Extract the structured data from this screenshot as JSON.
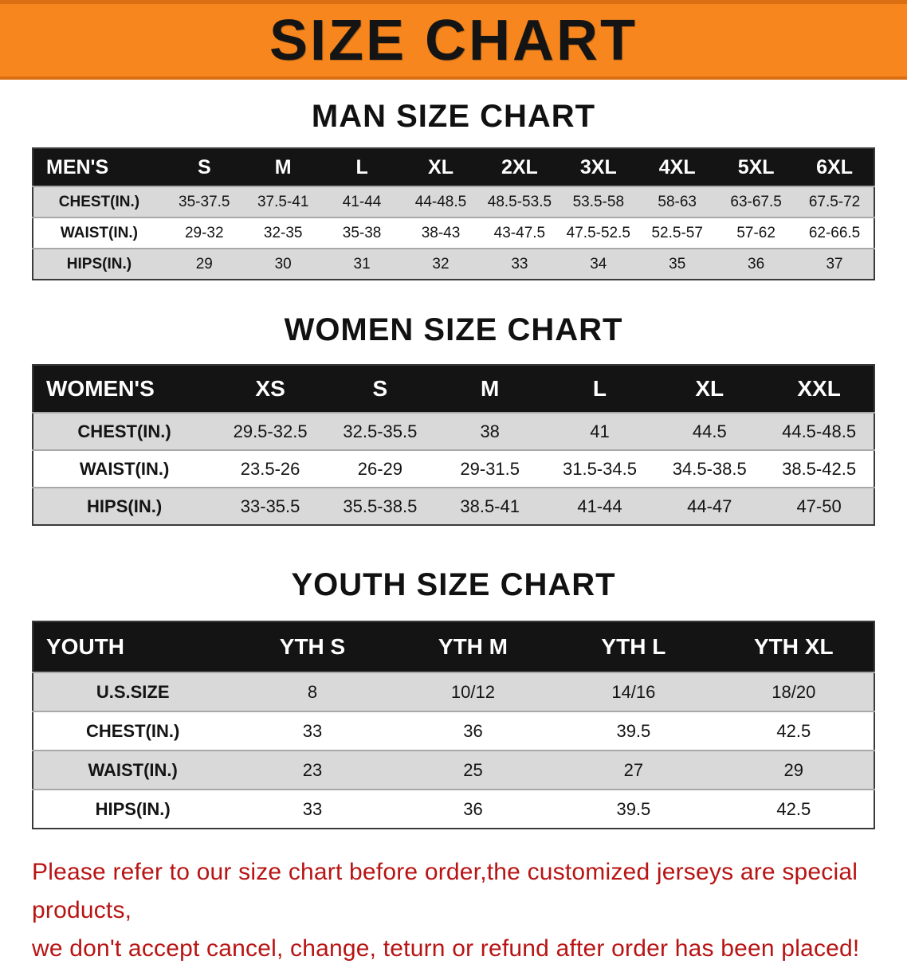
{
  "banner": {
    "title": "SIZE CHART",
    "bg_color": "#F6861D"
  },
  "colors": {
    "table_header_bg": "#141414",
    "stripe_row_bg": "#D9D9D9",
    "footer_text": "#B81414"
  },
  "sections": [
    {
      "heading": "MAN SIZE CHART",
      "table": {
        "header": [
          "MEN'S",
          "S",
          "M",
          "L",
          "XL",
          "2XL",
          "3XL",
          "4XL",
          "5XL",
          "6XL"
        ],
        "rows": [
          [
            "CHEST(IN.)",
            "35-37.5",
            "37.5-41",
            "41-44",
            "44-48.5",
            "48.5-53.5",
            "53.5-58",
            "58-63",
            "63-67.5",
            "67.5-72"
          ],
          [
            "WAIST(IN.)",
            "29-32",
            "32-35",
            "35-38",
            "38-43",
            "43-47.5",
            "47.5-52.5",
            "52.5-57",
            "57-62",
            "62-66.5"
          ],
          [
            "HIPS(IN.)",
            "29",
            "30",
            "31",
            "32",
            "33",
            "34",
            "35",
            "36",
            "37"
          ]
        ]
      }
    },
    {
      "heading": "WOMEN SIZE CHART",
      "table": {
        "header": [
          "WOMEN'S",
          "XS",
          "S",
          "M",
          "L",
          "XL",
          "XXL"
        ],
        "rows": [
          [
            "CHEST(IN.)",
            "29.5-32.5",
            "32.5-35.5",
            "38",
            "41",
            "44.5",
            "44.5-48.5"
          ],
          [
            "WAIST(IN.)",
            "23.5-26",
            "26-29",
            "29-31.5",
            "31.5-34.5",
            "34.5-38.5",
            "38.5-42.5"
          ],
          [
            "HIPS(IN.)",
            "33-35.5",
            "35.5-38.5",
            "38.5-41",
            "41-44",
            "44-47",
            "47-50"
          ]
        ]
      }
    },
    {
      "heading": "YOUTH SIZE CHART",
      "table": {
        "header": [
          "YOUTH",
          "YTH S",
          "YTH M",
          "YTH L",
          "YTH XL"
        ],
        "rows": [
          [
            "U.S.SIZE",
            "8",
            "10/12",
            "14/16",
            "18/20"
          ],
          [
            "CHEST(IN.)",
            "33",
            "36",
            "39.5",
            "42.5"
          ],
          [
            "WAIST(IN.)",
            "23",
            "25",
            "27",
            "29"
          ],
          [
            "HIPS(IN.)",
            "33",
            "36",
            "39.5",
            "42.5"
          ]
        ]
      }
    }
  ],
  "footer": {
    "lines": [
      "Please refer to our size chart before order,the customized jerseys are special products,",
      "we don't accept cancel, change, teturn or refund after order has been placed!"
    ]
  }
}
